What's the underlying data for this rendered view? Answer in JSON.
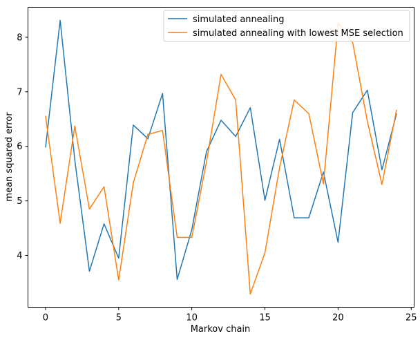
{
  "chart_data": {
    "type": "line",
    "title": "",
    "xlabel": "Markov chain",
    "ylabel": "mean squared error",
    "xlim": [
      -1.2,
      25.2
    ],
    "ylim": [
      3.05,
      8.55
    ],
    "xticks": [
      0,
      5,
      10,
      15,
      20,
      25
    ],
    "yticks": [
      4,
      5,
      6,
      7,
      8
    ],
    "grid": false,
    "legend_position": "top-right",
    "x": [
      0,
      1,
      2,
      3,
      4,
      5,
      6,
      7,
      8,
      9,
      10,
      11,
      12,
      13,
      14,
      15,
      16,
      17,
      18,
      19,
      20,
      21,
      22,
      23,
      24
    ],
    "series": [
      {
        "name": "simulated annealing",
        "color": "#1f77b4",
        "values": [
          5.98,
          8.31,
          5.75,
          3.71,
          4.58,
          3.95,
          6.39,
          6.14,
          6.97,
          3.56,
          4.47,
          5.9,
          6.48,
          6.18,
          6.71,
          5.01,
          6.13,
          4.69,
          4.69,
          5.53,
          4.24,
          6.62,
          7.03,
          5.57,
          6.6
        ]
      },
      {
        "name": "simulated annealing with lowest MSE selection",
        "color": "#ff7f0e",
        "values": [
          6.56,
          4.59,
          6.37,
          4.85,
          5.26,
          3.55,
          5.33,
          6.22,
          6.29,
          4.33,
          4.33,
          5.71,
          7.32,
          6.85,
          3.29,
          4.05,
          5.61,
          6.85,
          6.6,
          5.31,
          8.26,
          7.9,
          6.46,
          5.3,
          6.67
        ]
      }
    ]
  }
}
